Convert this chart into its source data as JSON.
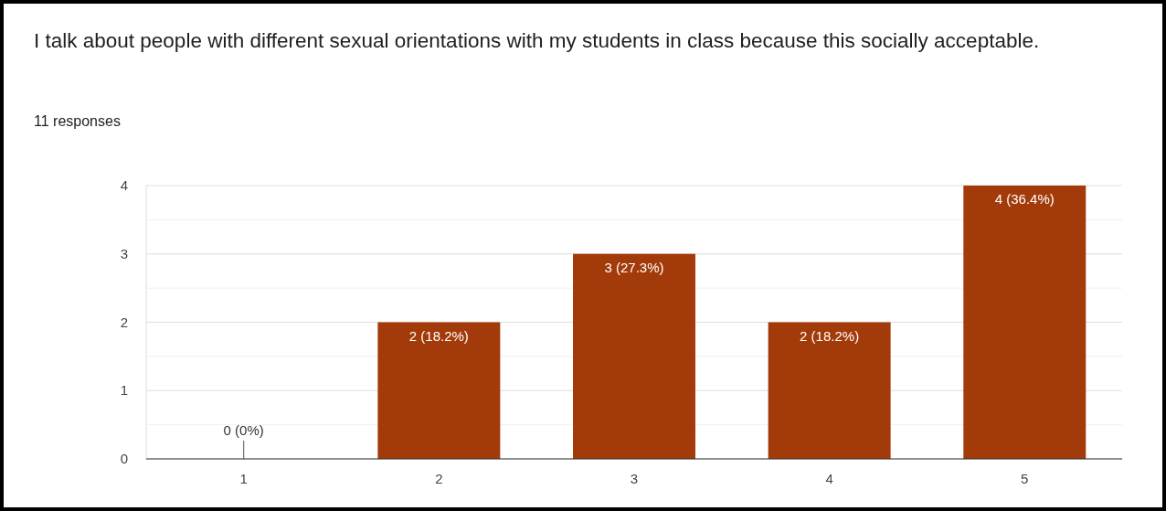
{
  "chart_data": {
    "type": "bar",
    "title": "I talk about people with different sexual orientations with my students in class because this socially acceptable.",
    "subtitle": "11 responses",
    "categories": [
      "1",
      "2",
      "3",
      "4",
      "5"
    ],
    "values": [
      0,
      2,
      3,
      2,
      4
    ],
    "value_labels": [
      "0 (0%)",
      "2 (18.2%)",
      "3 (27.3%)",
      "2 (18.2%)",
      "4 (36.4%)"
    ],
    "color": "#a33a0a",
    "ylim": [
      0,
      4
    ],
    "yticks": [
      0,
      {
        "value": 0.5,
        "label": null
      },
      1,
      {
        "value": 1.5,
        "label": null
      },
      2,
      {
        "value": 2.5,
        "label": null
      },
      3,
      {
        "value": 3.5,
        "label": null
      },
      4
    ],
    "grid": true
  }
}
